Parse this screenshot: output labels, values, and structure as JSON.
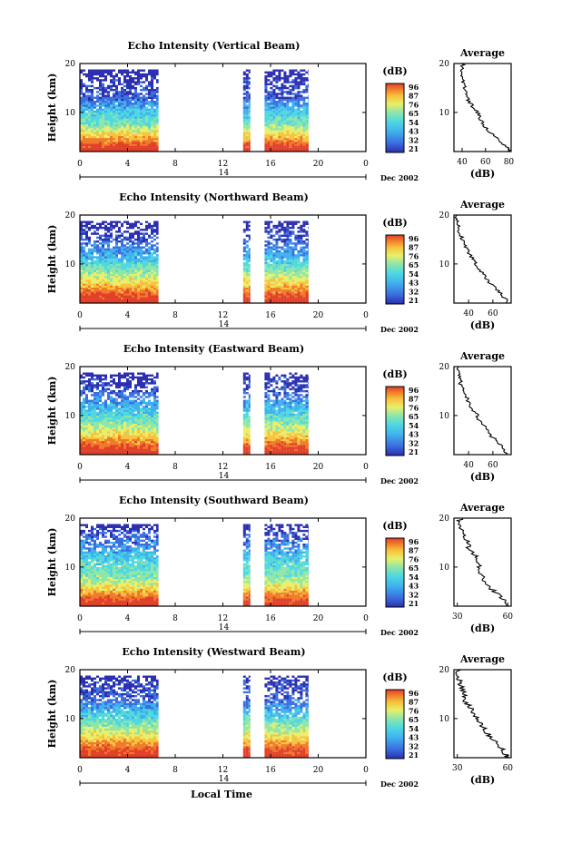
{
  "chart_data": [
    {
      "type": "heatmap",
      "title": "Echo Intensity (Vertical Beam)",
      "ylabel": "Height (km)",
      "unit_label": "(dB)",
      "colorbar_ticks": [
        "96",
        "87",
        "76",
        "65",
        "54",
        "43",
        "32",
        "21"
      ],
      "x_ticks": [
        "0",
        "4",
        "8",
        "12",
        "16",
        "20",
        "0"
      ],
      "x_range": [
        0,
        24
      ],
      "y_ticks": [
        "20",
        "10"
      ],
      "y_range": [
        2,
        20
      ],
      "day_label": "14",
      "date_label": "Dec 2002",
      "data_intervals_hours": [
        [
          0,
          6.6
        ],
        [
          13.7,
          14.3
        ],
        [
          15.5,
          19.2
        ]
      ],
      "profile": {
        "title": "Average",
        "xlabel": "(dB)",
        "x_ticks": [
          "40",
          "60",
          "80"
        ],
        "xlim": [
          33,
          82
        ],
        "y_ticks": [
          "20",
          "10"
        ],
        "heights": [
          2,
          3,
          4,
          5,
          6,
          7,
          8,
          9,
          10,
          11,
          12,
          13,
          14,
          15,
          16,
          17,
          18,
          19,
          20
        ],
        "values": [
          80,
          78,
          72,
          68,
          64,
          60,
          57,
          55,
          53,
          50,
          47,
          44,
          43,
          42,
          41,
          40,
          39,
          40,
          41
        ]
      }
    },
    {
      "type": "heatmap",
      "title": "Echo Intensity (Northward Beam)",
      "ylabel": "Height (km)",
      "unit_label": "(dB)",
      "colorbar_ticks": [
        "96",
        "87",
        "76",
        "65",
        "54",
        "43",
        "32",
        "21"
      ],
      "x_ticks": [
        "0",
        "4",
        "8",
        "12",
        "16",
        "20",
        "0"
      ],
      "x_range": [
        0,
        24
      ],
      "y_ticks": [
        "20",
        "10"
      ],
      "y_range": [
        2,
        20
      ],
      "day_label": "14",
      "date_label": "Dec 2002",
      "data_intervals_hours": [
        [
          0,
          6.6
        ],
        [
          13.7,
          14.3
        ],
        [
          15.5,
          19.2
        ]
      ],
      "profile": {
        "title": "Average",
        "xlabel": "(dB)",
        "x_ticks": [
          "40",
          "60"
        ],
        "xlim": [
          28,
          75
        ],
        "y_ticks": [
          "20",
          "10"
        ],
        "heights": [
          2,
          3,
          4,
          5,
          6,
          7,
          8,
          9,
          10,
          11,
          12,
          13,
          14,
          15,
          16,
          17,
          18,
          19,
          20
        ],
        "values": [
          72,
          70,
          66,
          62,
          58,
          55,
          52,
          49,
          46,
          43,
          41,
          39,
          37,
          35,
          33,
          32,
          31,
          30,
          31
        ]
      }
    },
    {
      "type": "heatmap",
      "title": "Echo Intensity (Eastward Beam)",
      "ylabel": "Height (km)",
      "unit_label": "(dB)",
      "colorbar_ticks": [
        "96",
        "87",
        "76",
        "65",
        "54",
        "43",
        "32",
        "21"
      ],
      "x_ticks": [
        "0",
        "4",
        "8",
        "12",
        "16",
        "20",
        "0"
      ],
      "x_range": [
        0,
        24
      ],
      "y_ticks": [
        "20",
        "10"
      ],
      "y_range": [
        2,
        20
      ],
      "day_label": "14",
      "date_label": "Dec 2002",
      "data_intervals_hours": [
        [
          0,
          6.6
        ],
        [
          13.7,
          14.3
        ],
        [
          15.5,
          19.2
        ]
      ],
      "profile": {
        "title": "Average",
        "xlabel": "(dB)",
        "x_ticks": [
          "40",
          "60"
        ],
        "xlim": [
          28,
          75
        ],
        "y_ticks": [
          "20",
          "10"
        ],
        "heights": [
          2,
          3,
          4,
          5,
          6,
          7,
          8,
          9,
          10,
          11,
          12,
          13,
          14,
          15,
          16,
          17,
          18,
          19,
          20
        ],
        "values": [
          72,
          70,
          66,
          62,
          58,
          55,
          52,
          49,
          47,
          44,
          42,
          40,
          38,
          36,
          34,
          33,
          32,
          31,
          32
        ]
      }
    },
    {
      "type": "heatmap",
      "title": "Echo Intensity (Southward Beam)",
      "ylabel": "Height (km)",
      "unit_label": "(dB)",
      "colorbar_ticks": [
        "96",
        "87",
        "76",
        "65",
        "54",
        "43",
        "32",
        "21"
      ],
      "x_ticks": [
        "0",
        "4",
        "8",
        "12",
        "16",
        "20",
        "0"
      ],
      "x_range": [
        0,
        24
      ],
      "y_ticks": [
        "20",
        "10"
      ],
      "y_range": [
        2,
        20
      ],
      "day_label": "14",
      "date_label": "Dec 2002",
      "data_intervals_hours": [
        [
          0,
          6.6
        ],
        [
          13.7,
          14.3
        ],
        [
          15.5,
          19.2
        ]
      ],
      "profile": {
        "title": "Average",
        "xlabel": "(dB)",
        "x_ticks": [
          "30",
          "60"
        ],
        "xlim": [
          28,
          62
        ],
        "y_ticks": [
          "20",
          "10"
        ],
        "heights": [
          2,
          3,
          4,
          5,
          6,
          7,
          8,
          9,
          10,
          11,
          12,
          13,
          14,
          15,
          16,
          17,
          18,
          19,
          20
        ],
        "values": [
          60,
          58,
          55,
          52,
          49,
          47,
          45,
          44,
          43,
          42,
          41,
          39,
          37,
          36,
          35,
          33,
          32,
          31,
          32
        ]
      }
    },
    {
      "type": "heatmap",
      "title": "Echo Intensity (Westward Beam)",
      "ylabel": "Height (km)",
      "unit_label": "(dB)",
      "colorbar_ticks": [
        "96",
        "87",
        "76",
        "65",
        "54",
        "43",
        "32",
        "21"
      ],
      "x_ticks": [
        "0",
        "4",
        "8",
        "12",
        "16",
        "20",
        "0"
      ],
      "x_range": [
        0,
        24
      ],
      "y_ticks": [
        "20",
        "10"
      ],
      "y_range": [
        2,
        20
      ],
      "day_label": "14",
      "date_label": "Dec 2002",
      "data_intervals_hours": [
        [
          0,
          6.6
        ],
        [
          13.7,
          14.3
        ],
        [
          15.5,
          19.2
        ]
      ],
      "profile": {
        "title": "Average",
        "xlabel": "(dB)",
        "x_ticks": [
          "30",
          "60"
        ],
        "xlim": [
          28,
          62
        ],
        "y_ticks": [
          "20",
          "10"
        ],
        "heights": [
          2,
          3,
          4,
          5,
          6,
          7,
          8,
          9,
          10,
          11,
          12,
          13,
          14,
          15,
          16,
          17,
          18,
          19,
          20
        ],
        "values": [
          60,
          58,
          56,
          53,
          50,
          48,
          46,
          44,
          42,
          40,
          38,
          36,
          34,
          34,
          33,
          32,
          31,
          30,
          31
        ]
      }
    }
  ],
  "footer": {
    "xlabel": "Local Time"
  },
  "colors": {
    "colormap": [
      "#2b2fb0",
      "#3b6fe0",
      "#3fb0ee",
      "#4fd8e0",
      "#8ee6a8",
      "#e8ef6a",
      "#f7c23c",
      "#f07a2a",
      "#e0402a"
    ]
  }
}
